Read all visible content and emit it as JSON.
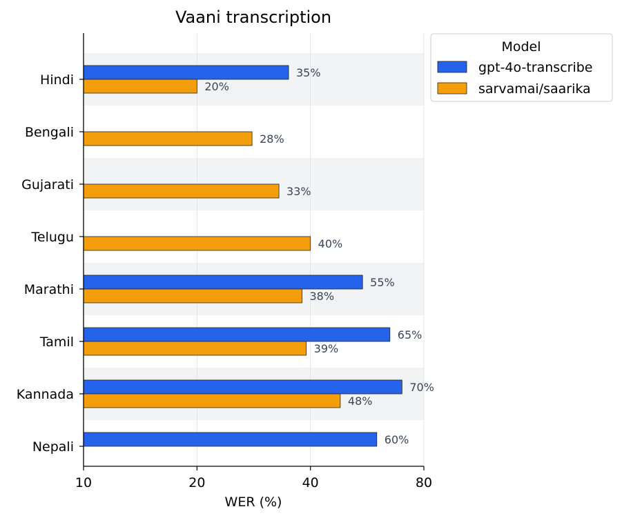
{
  "chart_data": {
    "type": "bar",
    "orientation": "horizontal",
    "title": "Vaani transcription",
    "xlabel": "WER (%)",
    "ylabel": "",
    "x_scale": "log",
    "xlim": [
      10,
      80
    ],
    "x_ticks": [
      10,
      20,
      40,
      80
    ],
    "grid": "vertical gridlines at x ticks; alternating row shading",
    "categories": [
      "Hindi",
      "Bengali",
      "Gujarati",
      "Telugu",
      "Marathi",
      "Tamil",
      "Kannada",
      "Nepali"
    ],
    "series": [
      {
        "name": "gpt-4o-transcribe",
        "color": "#2563eb",
        "values": [
          35,
          null,
          null,
          null,
          55,
          65,
          70,
          60
        ],
        "labels": [
          "35%",
          "",
          "",
          "",
          "55%",
          "65%",
          "70%",
          "60%"
        ]
      },
      {
        "name": "sarvamai/saarika",
        "color": "#f59e0b",
        "values": [
          20,
          28,
          33,
          40,
          38,
          39,
          48,
          null
        ],
        "labels": [
          "20%",
          "28%",
          "33%",
          "40%",
          "38%",
          "39%",
          "48%",
          ""
        ]
      }
    ],
    "legend": {
      "title": "Model",
      "placement": "outside top-right"
    }
  }
}
